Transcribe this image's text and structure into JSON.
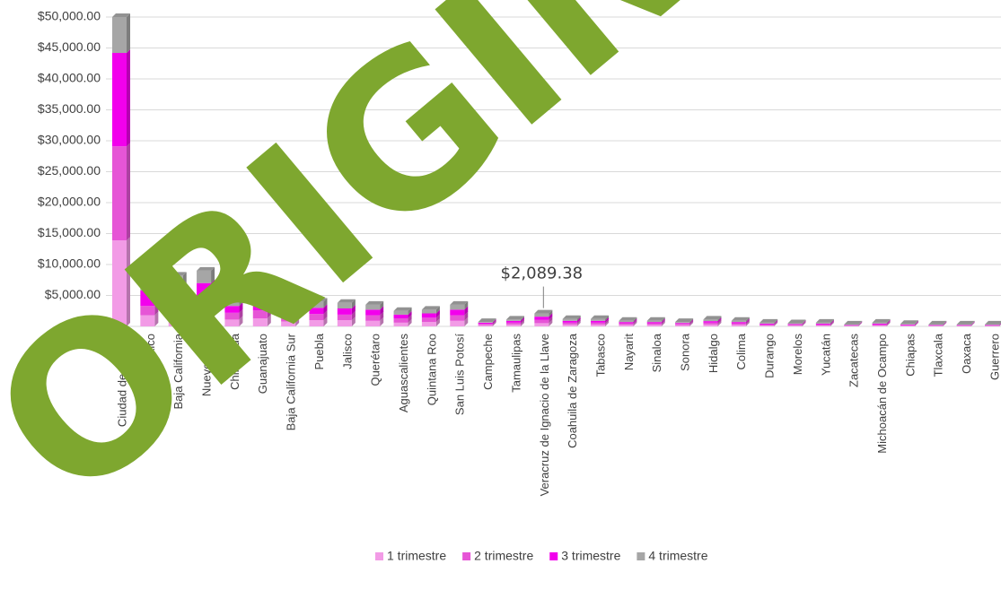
{
  "chart_data": {
    "type": "bar",
    "stacked": true,
    "categories": [
      "Ciudad de México",
      "Estado de México",
      "Baja California",
      "Nuevo León",
      "Chihuahua",
      "Guanajuato",
      "Baja California Sur",
      "Puebla",
      "Jalisco",
      "Querétaro",
      "Aguascalientes",
      "Quintana Roo",
      "San Luis Potosí",
      "Campeche",
      "Tamaulipas",
      "Veracruz de Ignacio de la Llave",
      "Coahuila de Zaragoza",
      "Tabasco",
      "Nayarit",
      "Sinaloa",
      "Sonora",
      "Hidalgo",
      "Colima",
      "Durango",
      "Morelos",
      "Yucatán",
      "Zacatecas",
      "Michoacán de Ocampo",
      "Chiapas",
      "Tlaxcala",
      "Oaxaca",
      "Guerrero"
    ],
    "series": [
      {
        "name": "1 trimestre",
        "color": "#f29be6",
        "values": [
          13900,
          1800,
          1700,
          2200,
          1100,
          1300,
          800,
          1000,
          1000,
          900,
          600,
          700,
          900,
          200,
          300,
          520,
          300,
          300,
          250,
          250,
          200,
          300,
          250,
          150,
          150,
          150,
          80,
          150,
          100,
          80,
          80,
          80
        ]
      },
      {
        "name": "2 trimestre",
        "color": "#e655d6",
        "values": [
          15200,
          1500,
          1700,
          2300,
          1100,
          1300,
          800,
          1000,
          900,
          900,
          700,
          700,
          900,
          200,
          300,
          520,
          300,
          300,
          250,
          250,
          200,
          300,
          250,
          150,
          150,
          150,
          80,
          150,
          100,
          80,
          80,
          80
        ]
      },
      {
        "name": "3 trimestre",
        "color": "#f200ec",
        "values": [
          15100,
          2500,
          2400,
          2500,
          1100,
          1400,
          900,
          1000,
          1000,
          900,
          600,
          700,
          900,
          200,
          300,
          530,
          300,
          300,
          200,
          200,
          150,
          250,
          200,
          150,
          100,
          150,
          70,
          150,
          100,
          70,
          70,
          70
        ]
      },
      {
        "name": "4 trimestre",
        "color": "#a6a6a6",
        "values": [
          5800,
          2500,
          2400,
          2000,
          1200,
          1300,
          800,
          1000,
          900,
          800,
          600,
          600,
          800,
          100,
          200,
          519.38,
          300,
          300,
          200,
          200,
          150,
          250,
          200,
          150,
          100,
          150,
          70,
          150,
          100,
          70,
          70,
          70
        ]
      }
    ],
    "ylim": [
      0,
      50000
    ],
    "yticks": [
      {
        "value": 0,
        "label": "$0.00"
      },
      {
        "value": 5000,
        "label": "$5,000.00"
      },
      {
        "value": 10000,
        "label": "$10,000.00"
      },
      {
        "value": 15000,
        "label": "$15,000.00"
      },
      {
        "value": 20000,
        "label": "$20,000.00"
      },
      {
        "value": 25000,
        "label": "$25,000.00"
      },
      {
        "value": 30000,
        "label": "$30,000.00"
      },
      {
        "value": 35000,
        "label": "$35,000.00"
      },
      {
        "value": 40000,
        "label": "$40,000.00"
      },
      {
        "value": 45000,
        "label": "$45,000.00"
      },
      {
        "value": 50000,
        "label": "$50,000.00"
      }
    ],
    "grid": true,
    "legend": "bottom",
    "annotations": [
      {
        "category": "Veracruz de Ignacio de la Llave",
        "value": 2089.38,
        "text": "$2,089.38"
      }
    ],
    "watermark": "ORIGINAL O"
  }
}
